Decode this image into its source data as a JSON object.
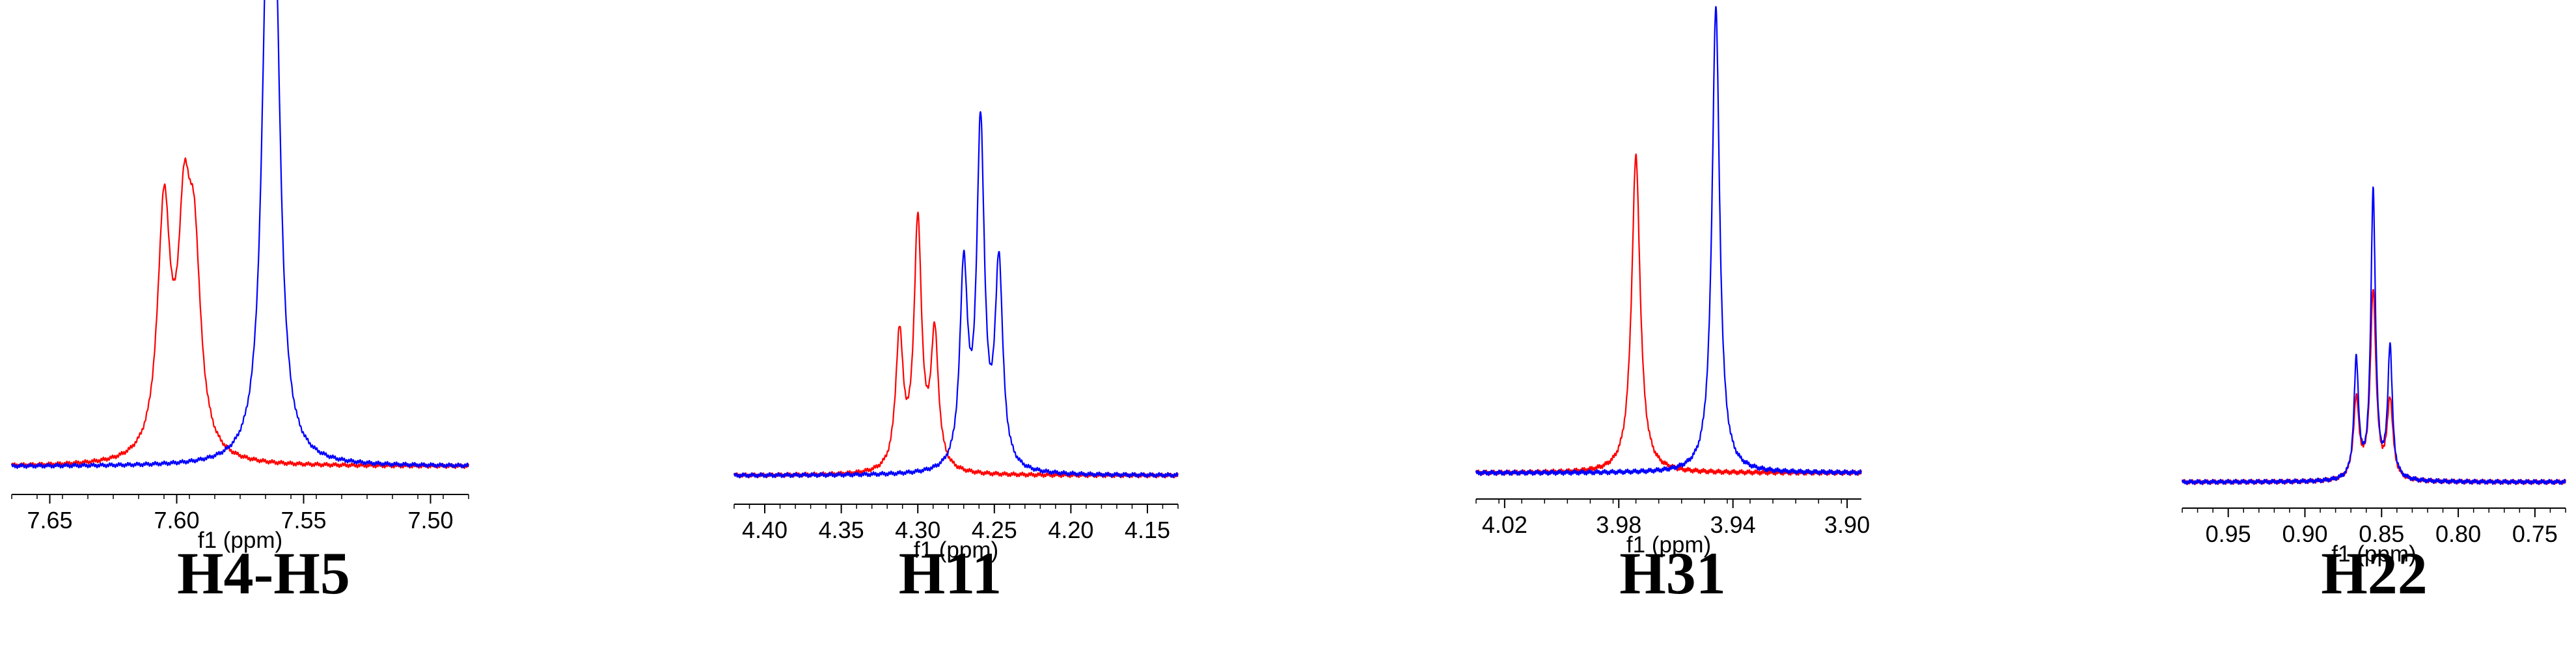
{
  "chart_data": [
    {
      "type": "line",
      "title": "H4-H5",
      "xlabel": "f1 (ppm)",
      "xlim": [
        7.665,
        7.485
      ],
      "ticks": [
        "7.65",
        "7.60",
        "7.55",
        "7.50"
      ],
      "tick_values": [
        7.65,
        7.6,
        7.55,
        7.5
      ],
      "grid": false,
      "series": [
        {
          "color": "#ff0000",
          "peaks": [
            {
              "x": 7.605,
              "y": 0.58,
              "w": 0.003
            },
            {
              "x": 7.597,
              "y": 0.5,
              "w": 0.003
            },
            {
              "x": 7.593,
              "y": 0.42,
              "w": 0.003
            }
          ]
        },
        {
          "color": "#0000ff",
          "peaks": [
            {
              "x": 7.5645,
              "y": 0.95,
              "w": 0.0026
            },
            {
              "x": 7.5612,
              "y": 0.95,
              "w": 0.0026
            }
          ]
        }
      ]
    },
    {
      "type": "line",
      "title": "H11",
      "xlabel": "f1 (ppm)",
      "xlim": [
        4.42,
        4.13
      ],
      "ticks": [
        "4.40",
        "4.35",
        "4.30",
        "4.25",
        "4.20",
        "4.15"
      ],
      "tick_values": [
        4.4,
        4.35,
        4.3,
        4.25,
        4.2,
        4.15
      ],
      "grid": false,
      "series": [
        {
          "color": "#ff0000",
          "peaks": [
            {
              "x": 4.312,
              "y": 0.31,
              "w": 0.003
            },
            {
              "x": 4.3,
              "y": 0.57,
              "w": 0.003
            },
            {
              "x": 4.289,
              "y": 0.31,
              "w": 0.003
            }
          ]
        },
        {
          "color": "#0000ff",
          "peaks": [
            {
              "x": 4.27,
              "y": 0.46,
              "w": 0.003
            },
            {
              "x": 4.259,
              "y": 0.79,
              "w": 0.003
            },
            {
              "x": 4.247,
              "y": 0.47,
              "w": 0.003
            }
          ]
        }
      ]
    },
    {
      "type": "line",
      "title": "H31",
      "xlabel": "f1 (ppm)",
      "xlim": [
        4.03,
        3.895
      ],
      "ticks": [
        "4.02",
        "3.98",
        "3.94",
        "3.90"
      ],
      "tick_values": [
        4.02,
        3.98,
        3.94,
        3.9
      ],
      "grid": false,
      "series": [
        {
          "color": "#ff0000",
          "peaks": [
            {
              "x": 3.974,
              "y": 0.68,
              "w": 0.0018
            }
          ]
        },
        {
          "color": "#0000ff",
          "peaks": [
            {
              "x": 3.946,
              "y": 1.0,
              "w": 0.0016
            }
          ]
        }
      ]
    },
    {
      "type": "line",
      "title": "H22",
      "xlabel": "f1 (ppm)",
      "xlim": [
        0.98,
        0.73
      ],
      "ticks": [
        "0.95",
        "0.90",
        "0.85",
        "0.80",
        "0.75"
      ],
      "tick_values": [
        0.95,
        0.9,
        0.85,
        0.8,
        0.75
      ],
      "grid": false,
      "series": [
        {
          "color": "#ff0000",
          "peaks": [
            {
              "x": 0.8665,
              "y": 0.18,
              "w": 0.0022
            },
            {
              "x": 0.8555,
              "y": 0.43,
              "w": 0.0022
            },
            {
              "x": 0.8445,
              "y": 0.18,
              "w": 0.0022
            }
          ]
        },
        {
          "color": "#0000ff",
          "peaks": [
            {
              "x": 0.8665,
              "y": 0.27,
              "w": 0.0018
            },
            {
              "x": 0.8555,
              "y": 0.66,
              "w": 0.0018
            },
            {
              "x": 0.8445,
              "y": 0.3,
              "w": 0.0018
            }
          ]
        }
      ]
    }
  ]
}
